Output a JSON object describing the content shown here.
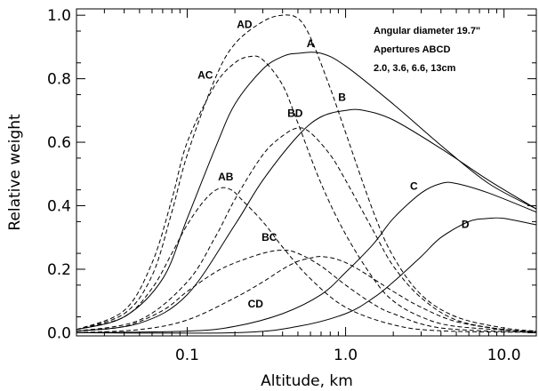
{
  "chart_data": {
    "type": "line",
    "xlabel": "Altitude, km",
    "ylabel": "Relative weight",
    "xscale": "log",
    "xlim": [
      0.02,
      16
    ],
    "ylim": [
      -0.01,
      1.02
    ],
    "x_ticks": [
      0.1,
      1.0,
      10.0
    ],
    "x_tick_labels": [
      "0.1",
      "1.0",
      "10.0"
    ],
    "y_ticks": [
      0.0,
      0.2,
      0.4,
      0.6,
      0.8,
      1.0
    ],
    "y_tick_labels": [
      "0.0",
      "0.2",
      "0.4",
      "0.6",
      "0.8",
      "1.0"
    ],
    "grid": false,
    "annotations": [
      "Angular diameter 19.7\"",
      "Apertures ABCD",
      "2.0, 3.6, 6.6, 13cm"
    ],
    "series": [
      {
        "label": "A",
        "style": "solid",
        "label_at": [
          0.6,
          0.9
        ],
        "points": [
          [
            0.02,
            0.01
          ],
          [
            0.04,
            0.05
          ],
          [
            0.07,
            0.17
          ],
          [
            0.1,
            0.36
          ],
          [
            0.15,
            0.58
          ],
          [
            0.2,
            0.72
          ],
          [
            0.3,
            0.83
          ],
          [
            0.4,
            0.87
          ],
          [
            0.5,
            0.88
          ],
          [
            0.7,
            0.88
          ],
          [
            1.0,
            0.84
          ],
          [
            2.0,
            0.72
          ],
          [
            4.0,
            0.59
          ],
          [
            8.0,
            0.47
          ],
          [
            16.0,
            0.39
          ]
        ]
      },
      {
        "label": "B",
        "style": "solid",
        "label_at": [
          0.95,
          0.73
        ],
        "points": [
          [
            0.02,
            0.005
          ],
          [
            0.05,
            0.03
          ],
          [
            0.1,
            0.12
          ],
          [
            0.2,
            0.34
          ],
          [
            0.3,
            0.48
          ],
          [
            0.5,
            0.62
          ],
          [
            0.7,
            0.68
          ],
          [
            1.0,
            0.7
          ],
          [
            1.3,
            0.7
          ],
          [
            2.0,
            0.67
          ],
          [
            4.0,
            0.58
          ],
          [
            8.0,
            0.48
          ],
          [
            16.0,
            0.39
          ]
        ]
      },
      {
        "label": "C",
        "style": "solid",
        "label_at": [
          2.7,
          0.45
        ],
        "points": [
          [
            0.02,
            0.0
          ],
          [
            0.1,
            0.005
          ],
          [
            0.2,
            0.02
          ],
          [
            0.4,
            0.06
          ],
          [
            0.7,
            0.12
          ],
          [
            1.0,
            0.19
          ],
          [
            1.5,
            0.28
          ],
          [
            2.0,
            0.36
          ],
          [
            3.0,
            0.44
          ],
          [
            4.0,
            0.47
          ],
          [
            5.0,
            0.47
          ],
          [
            8.0,
            0.44
          ],
          [
            16.0,
            0.38
          ]
        ]
      },
      {
        "label": "D",
        "style": "solid",
        "label_at": [
          5.7,
          0.33
        ],
        "points": [
          [
            0.02,
            0.0
          ],
          [
            0.2,
            0.0
          ],
          [
            0.5,
            0.02
          ],
          [
            1.0,
            0.06
          ],
          [
            1.5,
            0.11
          ],
          [
            2.0,
            0.16
          ],
          [
            3.0,
            0.24
          ],
          [
            4.0,
            0.3
          ],
          [
            6.0,
            0.35
          ],
          [
            8.0,
            0.36
          ],
          [
            10.0,
            0.36
          ],
          [
            16.0,
            0.34
          ]
        ]
      },
      {
        "label": "AD",
        "style": "dashed",
        "label_at": [
          0.23,
          0.96
        ],
        "points": [
          [
            0.02,
            0.01
          ],
          [
            0.04,
            0.06
          ],
          [
            0.06,
            0.18
          ],
          [
            0.08,
            0.38
          ],
          [
            0.1,
            0.56
          ],
          [
            0.15,
            0.8
          ],
          [
            0.2,
            0.91
          ],
          [
            0.3,
            0.98
          ],
          [
            0.4,
            1.0
          ],
          [
            0.5,
            0.99
          ],
          [
            0.6,
            0.93
          ],
          [
            0.8,
            0.77
          ],
          [
            1.0,
            0.63
          ],
          [
            1.5,
            0.38
          ],
          [
            2.0,
            0.24
          ],
          [
            3.0,
            0.12
          ],
          [
            5.0,
            0.05
          ],
          [
            10.0,
            0.015
          ],
          [
            16.0,
            0.005
          ]
        ]
      },
      {
        "label": "AC",
        "style": "dashed",
        "label_at": [
          0.13,
          0.8
        ],
        "points": [
          [
            0.02,
            0.01
          ],
          [
            0.04,
            0.07
          ],
          [
            0.06,
            0.22
          ],
          [
            0.08,
            0.42
          ],
          [
            0.1,
            0.6
          ],
          [
            0.15,
            0.78
          ],
          [
            0.2,
            0.85
          ],
          [
            0.25,
            0.87
          ],
          [
            0.3,
            0.86
          ],
          [
            0.4,
            0.78
          ],
          [
            0.5,
            0.66
          ],
          [
            0.7,
            0.47
          ],
          [
            1.0,
            0.31
          ],
          [
            1.5,
            0.17
          ],
          [
            2.0,
            0.1
          ],
          [
            3.0,
            0.05
          ],
          [
            5.0,
            0.02
          ],
          [
            16.0,
            0.003
          ]
        ]
      },
      {
        "label": "BD",
        "style": "dashed",
        "label_at": [
          0.48,
          0.68
        ],
        "points": [
          [
            0.02,
            0.005
          ],
          [
            0.05,
            0.04
          ],
          [
            0.1,
            0.16
          ],
          [
            0.15,
            0.3
          ],
          [
            0.2,
            0.42
          ],
          [
            0.3,
            0.56
          ],
          [
            0.4,
            0.62
          ],
          [
            0.5,
            0.645
          ],
          [
            0.6,
            0.63
          ],
          [
            0.8,
            0.56
          ],
          [
            1.0,
            0.48
          ],
          [
            1.5,
            0.32
          ],
          [
            2.0,
            0.21
          ],
          [
            3.0,
            0.11
          ],
          [
            5.0,
            0.04
          ],
          [
            10.0,
            0.01
          ],
          [
            16.0,
            0.003
          ]
        ]
      },
      {
        "label": "AB",
        "style": "dashed",
        "label_at": [
          0.175,
          0.48
        ],
        "points": [
          [
            0.02,
            0.01
          ],
          [
            0.04,
            0.05
          ],
          [
            0.06,
            0.14
          ],
          [
            0.08,
            0.25
          ],
          [
            0.1,
            0.34
          ],
          [
            0.13,
            0.42
          ],
          [
            0.16,
            0.455
          ],
          [
            0.19,
            0.45
          ],
          [
            0.22,
            0.42
          ],
          [
            0.3,
            0.35
          ],
          [
            0.4,
            0.27
          ],
          [
            0.6,
            0.17
          ],
          [
            1.0,
            0.08
          ],
          [
            2.0,
            0.025
          ],
          [
            4.0,
            0.006
          ],
          [
            16.0,
            0.001
          ]
        ]
      },
      {
        "label": "BC",
        "style": "dashed",
        "label_at": [
          0.33,
          0.29
        ],
        "points": [
          [
            0.02,
            0.005
          ],
          [
            0.04,
            0.02
          ],
          [
            0.07,
            0.07
          ],
          [
            0.1,
            0.13
          ],
          [
            0.15,
            0.19
          ],
          [
            0.2,
            0.22
          ],
          [
            0.3,
            0.25
          ],
          [
            0.4,
            0.26
          ],
          [
            0.5,
            0.25
          ],
          [
            0.7,
            0.21
          ],
          [
            1.0,
            0.15
          ],
          [
            1.5,
            0.09
          ],
          [
            2.0,
            0.06
          ],
          [
            4.0,
            0.015
          ],
          [
            16.0,
            0.001
          ]
        ]
      },
      {
        "label": "CD",
        "style": "dashed",
        "label_at": [
          0.27,
          0.08
        ],
        "points": [
          [
            0.02,
            0.0
          ],
          [
            0.05,
            0.01
          ],
          [
            0.1,
            0.04
          ],
          [
            0.2,
            0.11
          ],
          [
            0.3,
            0.16
          ],
          [
            0.4,
            0.2
          ],
          [
            0.5,
            0.225
          ],
          [
            0.6,
            0.235
          ],
          [
            0.7,
            0.24
          ],
          [
            0.9,
            0.23
          ],
          [
            1.2,
            0.2
          ],
          [
            2.0,
            0.13
          ],
          [
            3.0,
            0.08
          ],
          [
            5.0,
            0.035
          ],
          [
            10.0,
            0.01
          ],
          [
            16.0,
            0.004
          ]
        ]
      }
    ]
  }
}
